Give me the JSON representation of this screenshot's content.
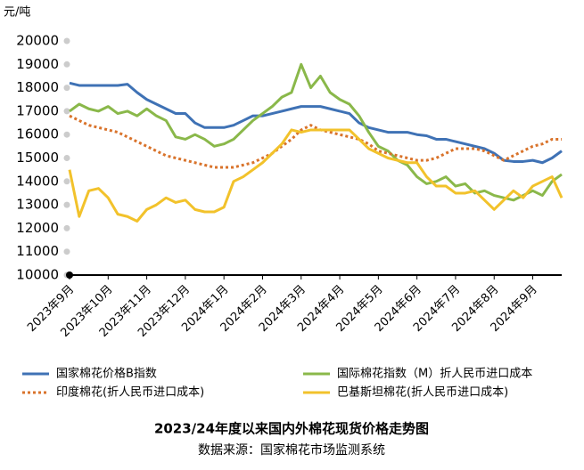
{
  "chart_data": {
    "type": "line",
    "title": "2023/24年度以来国内外棉花现货价格走势图",
    "subtitle": "数据来源：国家棉花市场监测系统",
    "y_label": "元/吨",
    "categories": [
      "2023年9月",
      null,
      null,
      null,
      "2023年10月",
      null,
      null,
      null,
      "2023年11月",
      null,
      null,
      null,
      "2023年12月",
      null,
      null,
      null,
      "2024年1月",
      null,
      null,
      null,
      "2024年2月",
      null,
      null,
      null,
      "2024年3月",
      null,
      null,
      null,
      "2024年4月",
      null,
      null,
      null,
      "2024年5月",
      null,
      null,
      null,
      "2024年6月",
      null,
      null,
      null,
      "2024年7月",
      null,
      null,
      null,
      "2024年8月",
      null,
      null,
      null,
      "2024年9月",
      null,
      null,
      null
    ],
    "ylim": [
      10000,
      20000
    ],
    "yticks": [
      10000,
      11000,
      12000,
      13000,
      14000,
      15000,
      16000,
      17000,
      18000,
      19000,
      20000
    ],
    "series": [
      {
        "name": "国家棉花价格B指数",
        "color": "#3f72b5",
        "dash": false,
        "values": [
          18200,
          18100,
          18100,
          18100,
          18100,
          18100,
          18150,
          17800,
          17500,
          17300,
          17100,
          16900,
          16900,
          16500,
          16300,
          16300,
          16300,
          16400,
          16600,
          16800,
          16800,
          16900,
          17000,
          17100,
          17200,
          17200,
          17200,
          17100,
          17000,
          16900,
          16500,
          16300,
          16200,
          16100,
          16100,
          16100,
          16000,
          15950,
          15800,
          15800,
          15700,
          15600,
          15500,
          15400,
          15200,
          14900,
          14850,
          14850,
          14900,
          14800,
          15000,
          15300
        ]
      },
      {
        "name": "国际棉花指数（M）折人民币进口成本",
        "color": "#8ab84a",
        "dash": false,
        "values": [
          17000,
          17300,
          17100,
          17000,
          17200,
          16900,
          17000,
          16800,
          17100,
          16800,
          16600,
          15900,
          15800,
          16000,
          15800,
          15500,
          15600,
          15800,
          16200,
          16600,
          16900,
          17200,
          17600,
          17800,
          19000,
          18000,
          18500,
          17800,
          17500,
          17300,
          16800,
          16100,
          15500,
          15300,
          14900,
          14700,
          14200,
          13900,
          14000,
          14200,
          13800,
          13900,
          13500,
          13600,
          13400,
          13300,
          13200,
          13400,
          13600,
          13400,
          14000,
          14300
        ]
      },
      {
        "name": "印度棉花(折人民币进口成本)",
        "color": "#d9732b",
        "dash": true,
        "values": [
          16800,
          16600,
          16400,
          16300,
          16200,
          16100,
          15900,
          15700,
          15500,
          15300,
          15100,
          15000,
          14900,
          14800,
          14700,
          14600,
          14600,
          14600,
          14700,
          14800,
          15000,
          15200,
          15500,
          15800,
          16200,
          16400,
          16200,
          16100,
          16000,
          15900,
          15800,
          15600,
          15300,
          15200,
          15100,
          15000,
          14900,
          14900,
          15000,
          15200,
          15400,
          15400,
          15400,
          15300,
          15100,
          14900,
          15100,
          15300,
          15500,
          15600,
          15800,
          15800
        ]
      },
      {
        "name": "巴基斯坦棉花(折人民币进口成本)",
        "color": "#f2c22b",
        "dash": false,
        "values": [
          14500,
          12500,
          13600,
          13700,
          13300,
          12600,
          12500,
          12300,
          12800,
          13000,
          13300,
          13100,
          13200,
          12800,
          12700,
          12700,
          12900,
          14000,
          14200,
          14500,
          14800,
          15200,
          15600,
          16200,
          16100,
          16200,
          16200,
          16200,
          16200,
          16200,
          15800,
          15400,
          15200,
          15000,
          14900,
          14800,
          14800,
          14200,
          13800,
          13800,
          13500,
          13500,
          13600,
          13200,
          12800,
          13200,
          13600,
          13300,
          13800,
          14000,
          14200,
          13300
        ]
      }
    ]
  }
}
